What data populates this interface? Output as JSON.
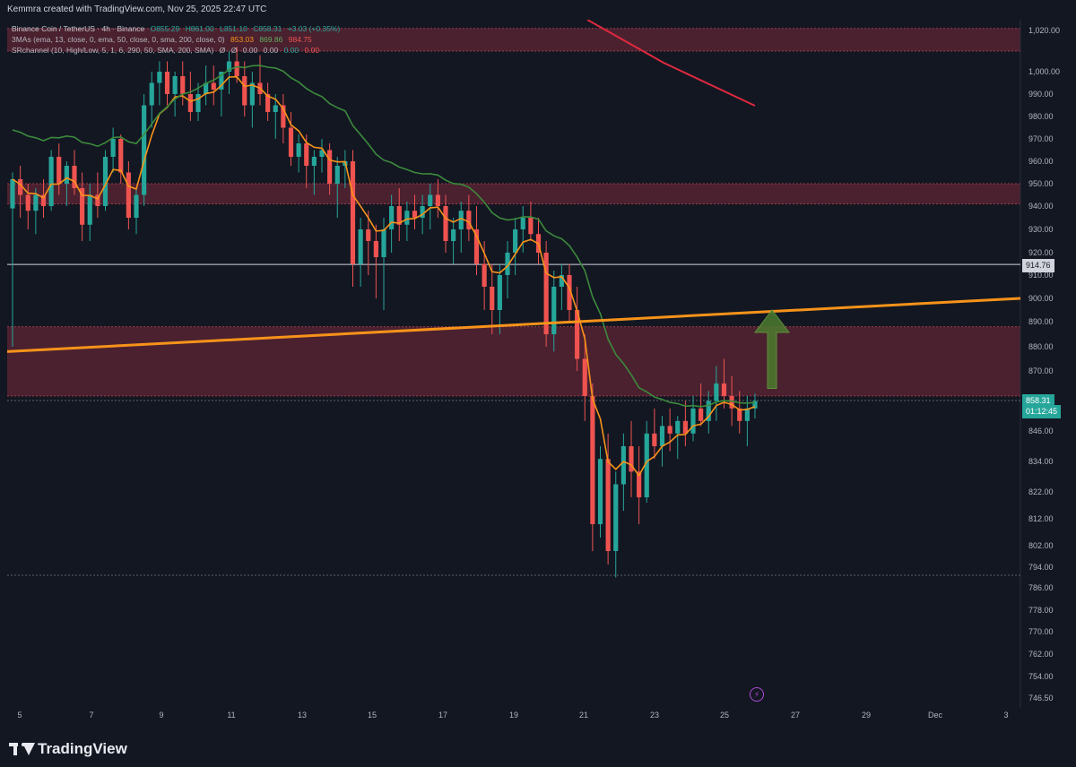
{
  "header": {
    "credit": "Kemmra created with TradingView.com, Nov 25, 2025 22:47 UTC",
    "symbol": "Binance Coin / TetherUS · 4h · Binance",
    "ohlc": {
      "o": "O855.29",
      "h": "H861.00",
      "l": "L851.10",
      "c": "C858.31",
      "chg": "+3.03 (+0.35%)"
    },
    "ma_name": "3MAs (ema, 13, close, 0, ema, 50, close, 0, sma, 200, close, 0)",
    "ma_values": [
      "853.03",
      "869.86",
      "984.75"
    ],
    "sr_name": "SRchannel (10, High/Low, 5, 1, 6, 290, 50, SMA, 200, SMA)",
    "sr_values": [
      "Ø",
      "Ø",
      "0.00",
      "0.00",
      "0.00",
      "0.00"
    ]
  },
  "price_labels": {
    "current": "858.31",
    "countdown": "01:12:45",
    "white_line": "914.76"
  },
  "colors": {
    "background": "#131722",
    "up": "#26a69a",
    "down": "#ef5350",
    "ema13": "#f7931a",
    "ema50": "#3c8a3c",
    "sma200": "#e0293f",
    "zone": "#7a2a3a",
    "trendline": "#f7931a",
    "arrow": "#4c7a2e"
  },
  "icons": {
    "logo": "tradingview-logo-icon",
    "alert": "lightning-alert-icon"
  },
  "brand": "TradingView",
  "chart_data": {
    "type": "candlestick",
    "y_ticks": [
      "1,020.00",
      "1,000.00",
      "990.00",
      "980.00",
      "970.00",
      "960.00",
      "950.00",
      "940.00",
      "930.00",
      "920.00",
      "910.00",
      "900.00",
      "890.00",
      "880.00",
      "870.00",
      "846.00",
      "834.00",
      "822.00",
      "812.00",
      "802.00",
      "794.00",
      "786.00",
      "778.00",
      "770.00",
      "762.00",
      "754.00",
      "746.50"
    ],
    "x_ticks": [
      "5",
      "7",
      "9",
      "11",
      "13",
      "15",
      "17",
      "19",
      "21",
      "23",
      "25",
      "27",
      "29",
      "Dec",
      "3"
    ],
    "resistance_zones": [
      [
        1010,
        1021
      ],
      [
        941,
        950
      ],
      [
        860,
        888
      ]
    ],
    "horizontal_lines": [
      914.76,
      790
    ],
    "trendline": {
      "start": [
        "Nov 5",
        878
      ],
      "end": [
        "Dec 3",
        900
      ]
    },
    "arrow": {
      "from": 863,
      "to": 895,
      "at": "Nov 26"
    },
    "candles": [
      [
        939,
        955,
        880,
        952
      ],
      [
        952,
        958,
        935,
        945
      ],
      [
        945,
        950,
        930,
        938
      ],
      [
        938,
        948,
        928,
        945
      ],
      [
        945,
        952,
        935,
        940
      ],
      [
        940,
        965,
        938,
        962
      ],
      [
        962,
        968,
        945,
        950
      ],
      [
        950,
        960,
        940,
        958
      ],
      [
        958,
        965,
        945,
        948
      ],
      [
        948,
        955,
        925,
        932
      ],
      [
        932,
        950,
        925,
        945
      ],
      [
        945,
        955,
        935,
        940
      ],
      [
        940,
        965,
        938,
        962
      ],
      [
        962,
        975,
        955,
        970
      ],
      [
        970,
        972,
        950,
        955
      ],
      [
        955,
        960,
        930,
        935
      ],
      [
        935,
        948,
        928,
        945
      ],
      [
        945,
        990,
        940,
        985
      ],
      [
        985,
        1000,
        975,
        995
      ],
      [
        995,
        1005,
        985,
        1000
      ],
      [
        1000,
        1005,
        985,
        990
      ],
      [
        990,
        1000,
        980,
        998
      ],
      [
        998,
        1005,
        985,
        990
      ],
      [
        990,
        1000,
        978,
        982
      ],
      [
        982,
        995,
        978,
        990
      ],
      [
        990,
        1003,
        985,
        995
      ],
      [
        995,
        1003,
        985,
        992
      ],
      [
        992,
        1000,
        980,
        1000
      ],
      [
        1000,
        1010,
        990,
        1005
      ],
      [
        1005,
        1012,
        995,
        998
      ],
      [
        998,
        1005,
        980,
        985
      ],
      [
        985,
        1000,
        975,
        995
      ],
      [
        995,
        1008,
        985,
        990
      ],
      [
        990,
        995,
        978,
        982
      ],
      [
        982,
        990,
        970,
        985
      ],
      [
        985,
        990,
        968,
        975
      ],
      [
        975,
        982,
        958,
        962
      ],
      [
        962,
        972,
        955,
        968
      ],
      [
        968,
        972,
        948,
        958
      ],
      [
        958,
        965,
        945,
        962
      ],
      [
        962,
        970,
        955,
        965
      ],
      [
        965,
        968,
        945,
        950
      ],
      [
        950,
        962,
        935,
        958
      ],
      [
        958,
        965,
        948,
        960
      ],
      [
        960,
        965,
        905,
        915
      ],
      [
        915,
        935,
        905,
        930
      ],
      [
        930,
        938,
        910,
        925
      ],
      [
        925,
        932,
        900,
        918
      ],
      [
        918,
        935,
        895,
        930
      ],
      [
        930,
        945,
        920,
        940
      ],
      [
        940,
        948,
        925,
        932
      ],
      [
        932,
        942,
        925,
        938
      ],
      [
        938,
        945,
        930,
        935
      ],
      [
        935,
        945,
        928,
        940
      ],
      [
        940,
        950,
        930,
        945
      ],
      [
        945,
        952,
        935,
        940
      ],
      [
        940,
        945,
        920,
        925
      ],
      [
        925,
        935,
        915,
        930
      ],
      [
        930,
        942,
        920,
        938
      ],
      [
        938,
        945,
        925,
        930
      ],
      [
        930,
        940,
        910,
        915
      ],
      [
        915,
        925,
        895,
        905
      ],
      [
        905,
        915,
        885,
        895
      ],
      [
        895,
        915,
        885,
        910
      ],
      [
        910,
        925,
        900,
        920
      ],
      [
        920,
        935,
        910,
        930
      ],
      [
        930,
        940,
        920,
        935
      ],
      [
        935,
        942,
        925,
        928
      ],
      [
        928,
        935,
        915,
        920
      ],
      [
        920,
        925,
        880,
        885
      ],
      [
        885,
        912,
        878,
        905
      ],
      [
        905,
        915,
        895,
        910
      ],
      [
        910,
        915,
        890,
        895
      ],
      [
        895,
        905,
        870,
        875
      ],
      [
        875,
        885,
        850,
        860
      ],
      [
        860,
        865,
        800,
        810
      ],
      [
        810,
        840,
        805,
        835
      ],
      [
        835,
        845,
        795,
        800
      ],
      [
        800,
        830,
        790,
        825
      ],
      [
        825,
        845,
        815,
        840
      ],
      [
        840,
        850,
        820,
        830
      ],
      [
        830,
        840,
        810,
        820
      ],
      [
        820,
        850,
        818,
        845
      ],
      [
        845,
        855,
        835,
        840
      ],
      [
        840,
        852,
        832,
        848
      ],
      [
        848,
        855,
        838,
        845
      ],
      [
        845,
        852,
        835,
        850
      ],
      [
        850,
        858,
        840,
        845
      ],
      [
        845,
        860,
        842,
        855
      ],
      [
        855,
        865,
        848,
        850
      ],
      [
        850,
        862,
        845,
        858
      ],
      [
        858,
        872,
        850,
        865
      ],
      [
        865,
        875,
        855,
        860
      ],
      [
        860,
        868,
        848,
        855
      ],
      [
        855,
        862,
        845,
        850
      ],
      [
        850,
        860,
        840,
        855
      ],
      [
        855,
        861,
        851,
        858
      ]
    ]
  }
}
